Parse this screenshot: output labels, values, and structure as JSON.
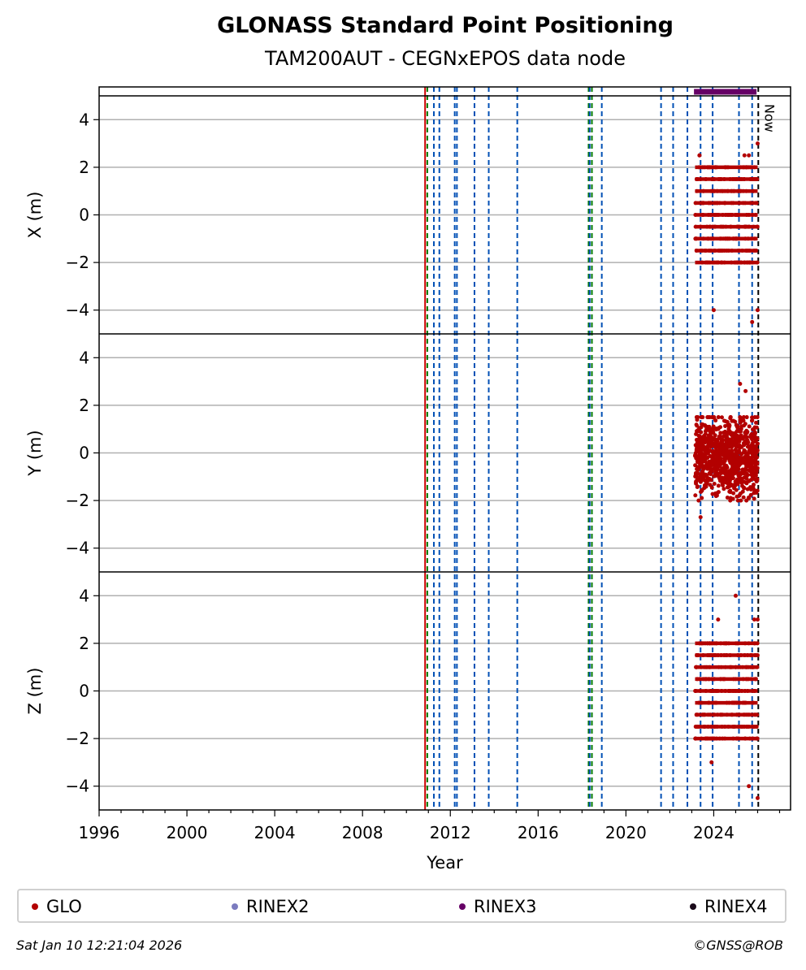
{
  "header": {
    "title": "GLONASS Standard Point Positioning",
    "subtitle": "TAM200AUT - CEGNxEPOS data node"
  },
  "legend": {
    "items": [
      {
        "label": "GLO",
        "color": "#b30000"
      },
      {
        "label": "RINEX2",
        "color": "#7b7bbf"
      },
      {
        "label": "RINEX3",
        "color": "#660066"
      },
      {
        "label": "RINEX4",
        "color": "#1a0a1a"
      }
    ]
  },
  "footer": {
    "timestamp": "Sat Jan 10 12:21:04 2026",
    "copyright": "©GNSS@ROB"
  },
  "chart_data": {
    "type": "scatter",
    "xlabel": "Year",
    "xlim": [
      1996,
      2027.5
    ],
    "x_ticks": [
      1996,
      2000,
      2004,
      2008,
      2012,
      2016,
      2020,
      2024
    ],
    "now_label": "Now",
    "now_year": 2026.03,
    "grid": true,
    "legend_position": "bottom",
    "panels": [
      {
        "ylabel": "X (m)",
        "ylim": [
          -5,
          5
        ],
        "y_ticks": [
          4,
          2,
          0,
          -2,
          -4
        ]
      },
      {
        "ylabel": "Y (m)",
        "ylim": [
          -5,
          5
        ],
        "y_ticks": [
          4,
          2,
          0,
          -2,
          -4
        ]
      },
      {
        "ylabel": "Z (m)",
        "ylim": [
          -5,
          5
        ],
        "y_ticks": [
          4,
          2,
          0,
          -2,
          -4
        ]
      }
    ],
    "event_lines": {
      "red": [
        2010.85
      ],
      "green": [
        2010.95,
        2018.3,
        2018.45
      ],
      "blue": [
        2011.25,
        2011.5,
        2012.2,
        2012.3,
        2013.1,
        2013.75,
        2015.05,
        2018.35,
        2018.9,
        2021.6,
        2022.15,
        2022.8,
        2023.4,
        2023.95,
        2025.15,
        2025.75
      ],
      "black": [
        2026.03
      ]
    },
    "rinex_availability": {
      "series": "RINEX3",
      "start": 2023.1,
      "end": 2025.95,
      "color": "#660066"
    },
    "series": [
      {
        "name": "GLO",
        "color": "#b30000",
        "x_start": 2023.15,
        "x_end": 2026.0,
        "panels": [
          {
            "levels": [
              -2.0,
              -1.5,
              -1.0,
              -0.5,
              0.0,
              0.5,
              1.0,
              1.5,
              2.0
            ],
            "y_range": [
              -2.5,
              2.5
            ],
            "outliers": [
              [
                2023.35,
                2.5
              ],
              [
                2023.35,
                2.5
              ],
              [
                2024.0,
                -4.0
              ],
              [
                2025.75,
                -4.5
              ],
              [
                2026.0,
                -4.0
              ],
              [
                2026.0,
                3.0
              ],
              [
                2025.4,
                2.5
              ],
              [
                2025.6,
                2.5
              ]
            ]
          },
          {
            "levels": [],
            "y_range": [
              -2.0,
              1.5
            ],
            "outliers": [
              [
                2023.4,
                -2.7
              ],
              [
                2025.2,
                2.9
              ],
              [
                2025.45,
                2.6
              ]
            ]
          },
          {
            "levels": [
              -2.0,
              -1.5,
              -1.0,
              -0.5,
              0.0,
              0.5,
              1.0,
              1.5,
              2.0
            ],
            "y_range": [
              -2.5,
              2.5
            ],
            "outliers": [
              [
                2025.0,
                4.0
              ],
              [
                2024.2,
                3.0
              ],
              [
                2023.9,
                -3.0
              ],
              [
                2025.6,
                -4.0
              ],
              [
                2026.0,
                -4.5
              ],
              [
                2026.0,
                3.0
              ],
              [
                2025.85,
                3.0
              ]
            ]
          }
        ]
      }
    ]
  }
}
